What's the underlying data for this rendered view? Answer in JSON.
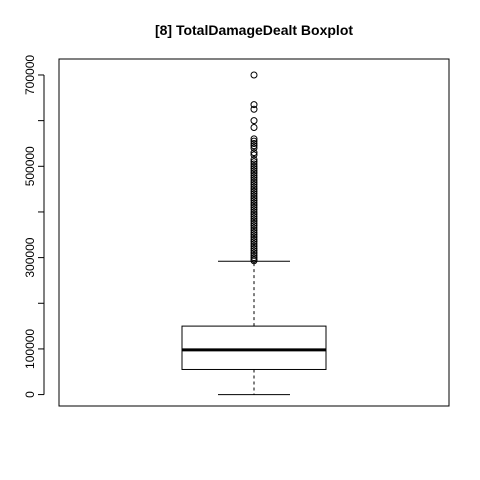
{
  "chart_data": {
    "type": "boxplot",
    "title": "[8] TotalDamageDealt Boxplot",
    "xlabel": "",
    "ylabel": "",
    "ylim": [
      -25000,
      735000
    ],
    "y_ticks": [
      0,
      100000,
      200000,
      300000,
      400000,
      500000,
      600000,
      700000
    ],
    "y_tick_labels": [
      "0",
      "100000",
      "",
      "300000",
      "",
      "500000",
      "",
      "700000"
    ],
    "grid": false,
    "box": {
      "min": 0,
      "q1": 55000,
      "median": 98000,
      "q3": 150000,
      "whisker_high": 292000
    },
    "outliers": [
      293000,
      296000,
      300000,
      305000,
      310000,
      315000,
      320000,
      325000,
      330000,
      335000,
      340000,
      345000,
      350000,
      355000,
      360000,
      365000,
      370000,
      375000,
      380000,
      385000,
      390000,
      395000,
      400000,
      405000,
      410000,
      415000,
      420000,
      425000,
      430000,
      435000,
      440000,
      445000,
      450000,
      455000,
      460000,
      465000,
      470000,
      475000,
      480000,
      485000,
      490000,
      495000,
      500000,
      505000,
      510000,
      515000,
      525000,
      530000,
      540000,
      545000,
      550000,
      555000,
      560000,
      585000,
      600000,
      625000,
      635000,
      700000
    ]
  }
}
